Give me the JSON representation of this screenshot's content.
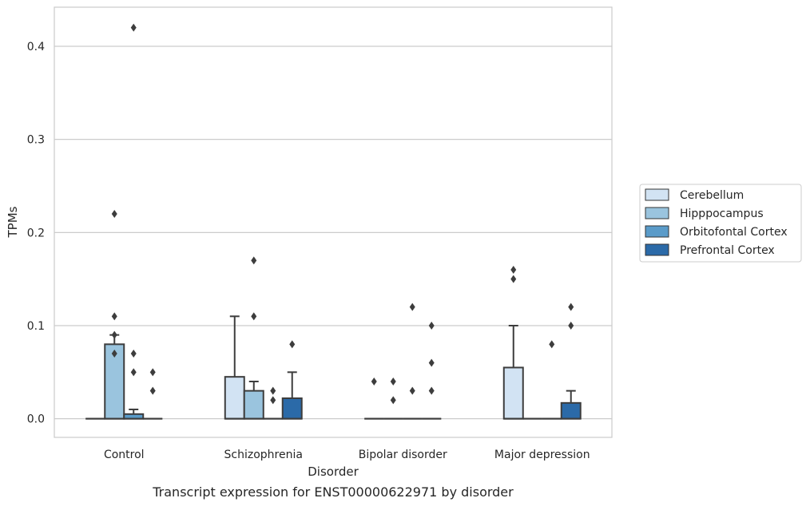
{
  "chart_data": {
    "type": "box",
    "title": "Transcript expression for ENST00000622971 by disorder",
    "xlabel": "Disorder",
    "ylabel": "TPMs",
    "ylim": [
      -0.02,
      0.442
    ],
    "yticks": [
      0.0,
      0.1,
      0.2,
      0.3,
      0.4
    ],
    "ytick_labels": [
      "0.0",
      "0.1",
      "0.2",
      "0.3",
      "0.4"
    ],
    "grid": "horizontal",
    "legend_position": "right",
    "categories": [
      "Control",
      "Schizophrenia",
      "Bipolar disorder",
      "Major depression"
    ],
    "series": [
      {
        "name": "Cerebellum",
        "color": "#d2e3f3",
        "boxes": [
          {
            "q1": 0,
            "median": 0,
            "q3": 0,
            "whisker_low": 0,
            "whisker_high": 0,
            "outliers": []
          },
          {
            "q1": 0,
            "median": 0,
            "q3": 0.045,
            "whisker_low": 0,
            "whisker_high": 0.11,
            "outliers": []
          },
          {
            "q1": 0,
            "median": 0,
            "q3": 0,
            "whisker_low": 0,
            "whisker_high": 0,
            "outliers": [
              0.04
            ]
          },
          {
            "q1": 0,
            "median": 0,
            "q3": 0.055,
            "whisker_low": 0,
            "whisker_high": 0.1,
            "outliers": [
              0.15,
              0.16
            ]
          }
        ]
      },
      {
        "name": "Hipppocampus",
        "color": "#9ac4de",
        "boxes": [
          {
            "q1": 0,
            "median": 0,
            "q3": 0.08,
            "whisker_low": 0,
            "whisker_high": 0.09,
            "outliers": [
              0.07,
              0.09,
              0.11,
              0.22
            ]
          },
          {
            "q1": 0,
            "median": 0,
            "q3": 0.03,
            "whisker_low": 0,
            "whisker_high": 0.04,
            "outliers": [
              0.11,
              0.17
            ]
          },
          {
            "q1": 0,
            "median": 0,
            "q3": 0,
            "whisker_low": 0,
            "whisker_high": 0,
            "outliers": [
              0.02,
              0.04
            ]
          },
          {
            "q1": 0,
            "median": 0,
            "q3": 0,
            "whisker_low": 0,
            "whisker_high": 0,
            "outliers": []
          }
        ]
      },
      {
        "name": "Orbitofontal Cortex",
        "color": "#5a9bc9",
        "boxes": [
          {
            "q1": 0,
            "median": 0,
            "q3": 0.005,
            "whisker_low": 0,
            "whisker_high": 0.01,
            "outliers": [
              0.05,
              0.07,
              0.42
            ]
          },
          {
            "q1": 0,
            "median": 0,
            "q3": 0,
            "whisker_low": 0,
            "whisker_high": 0,
            "outliers": [
              0.02,
              0.03
            ]
          },
          {
            "q1": 0,
            "median": 0,
            "q3": 0,
            "whisker_low": 0,
            "whisker_high": 0,
            "outliers": [
              0.03,
              0.12
            ]
          },
          {
            "q1": 0,
            "median": 0,
            "q3": 0,
            "whisker_low": 0,
            "whisker_high": 0,
            "outliers": [
              0.08
            ]
          }
        ]
      },
      {
        "name": "Prefrontal Cortex",
        "color": "#2b6aa8",
        "boxes": [
          {
            "q1": 0,
            "median": 0,
            "q3": 0,
            "whisker_low": 0,
            "whisker_high": 0,
            "outliers": [
              0.03,
              0.05
            ]
          },
          {
            "q1": 0,
            "median": 0,
            "q3": 0.022,
            "whisker_low": 0,
            "whisker_high": 0.05,
            "outliers": [
              0.08
            ]
          },
          {
            "q1": 0,
            "median": 0,
            "q3": 0,
            "whisker_low": 0,
            "whisker_high": 0,
            "outliers": [
              0.03,
              0.06,
              0.1
            ]
          },
          {
            "q1": 0,
            "median": 0,
            "q3": 0.017,
            "whisker_low": 0,
            "whisker_high": 0.03,
            "outliers": [
              0.1,
              0.12
            ]
          }
        ]
      }
    ]
  }
}
